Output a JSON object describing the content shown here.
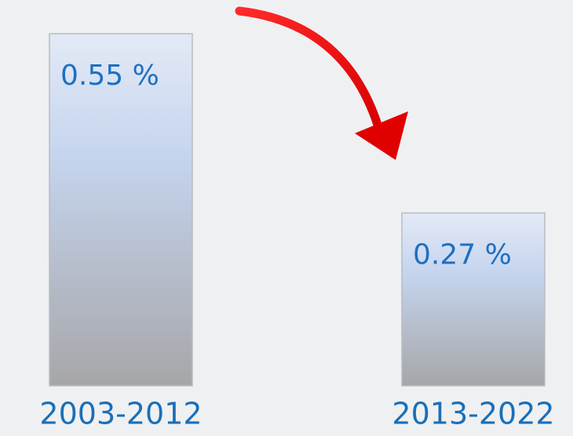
{
  "chart_data": {
    "type": "bar",
    "categories": [
      "2003-2012",
      "2013-2022"
    ],
    "values": [
      0.55,
      0.27
    ],
    "value_labels": [
      "0.55 %",
      "0.27 %"
    ]
  }
}
